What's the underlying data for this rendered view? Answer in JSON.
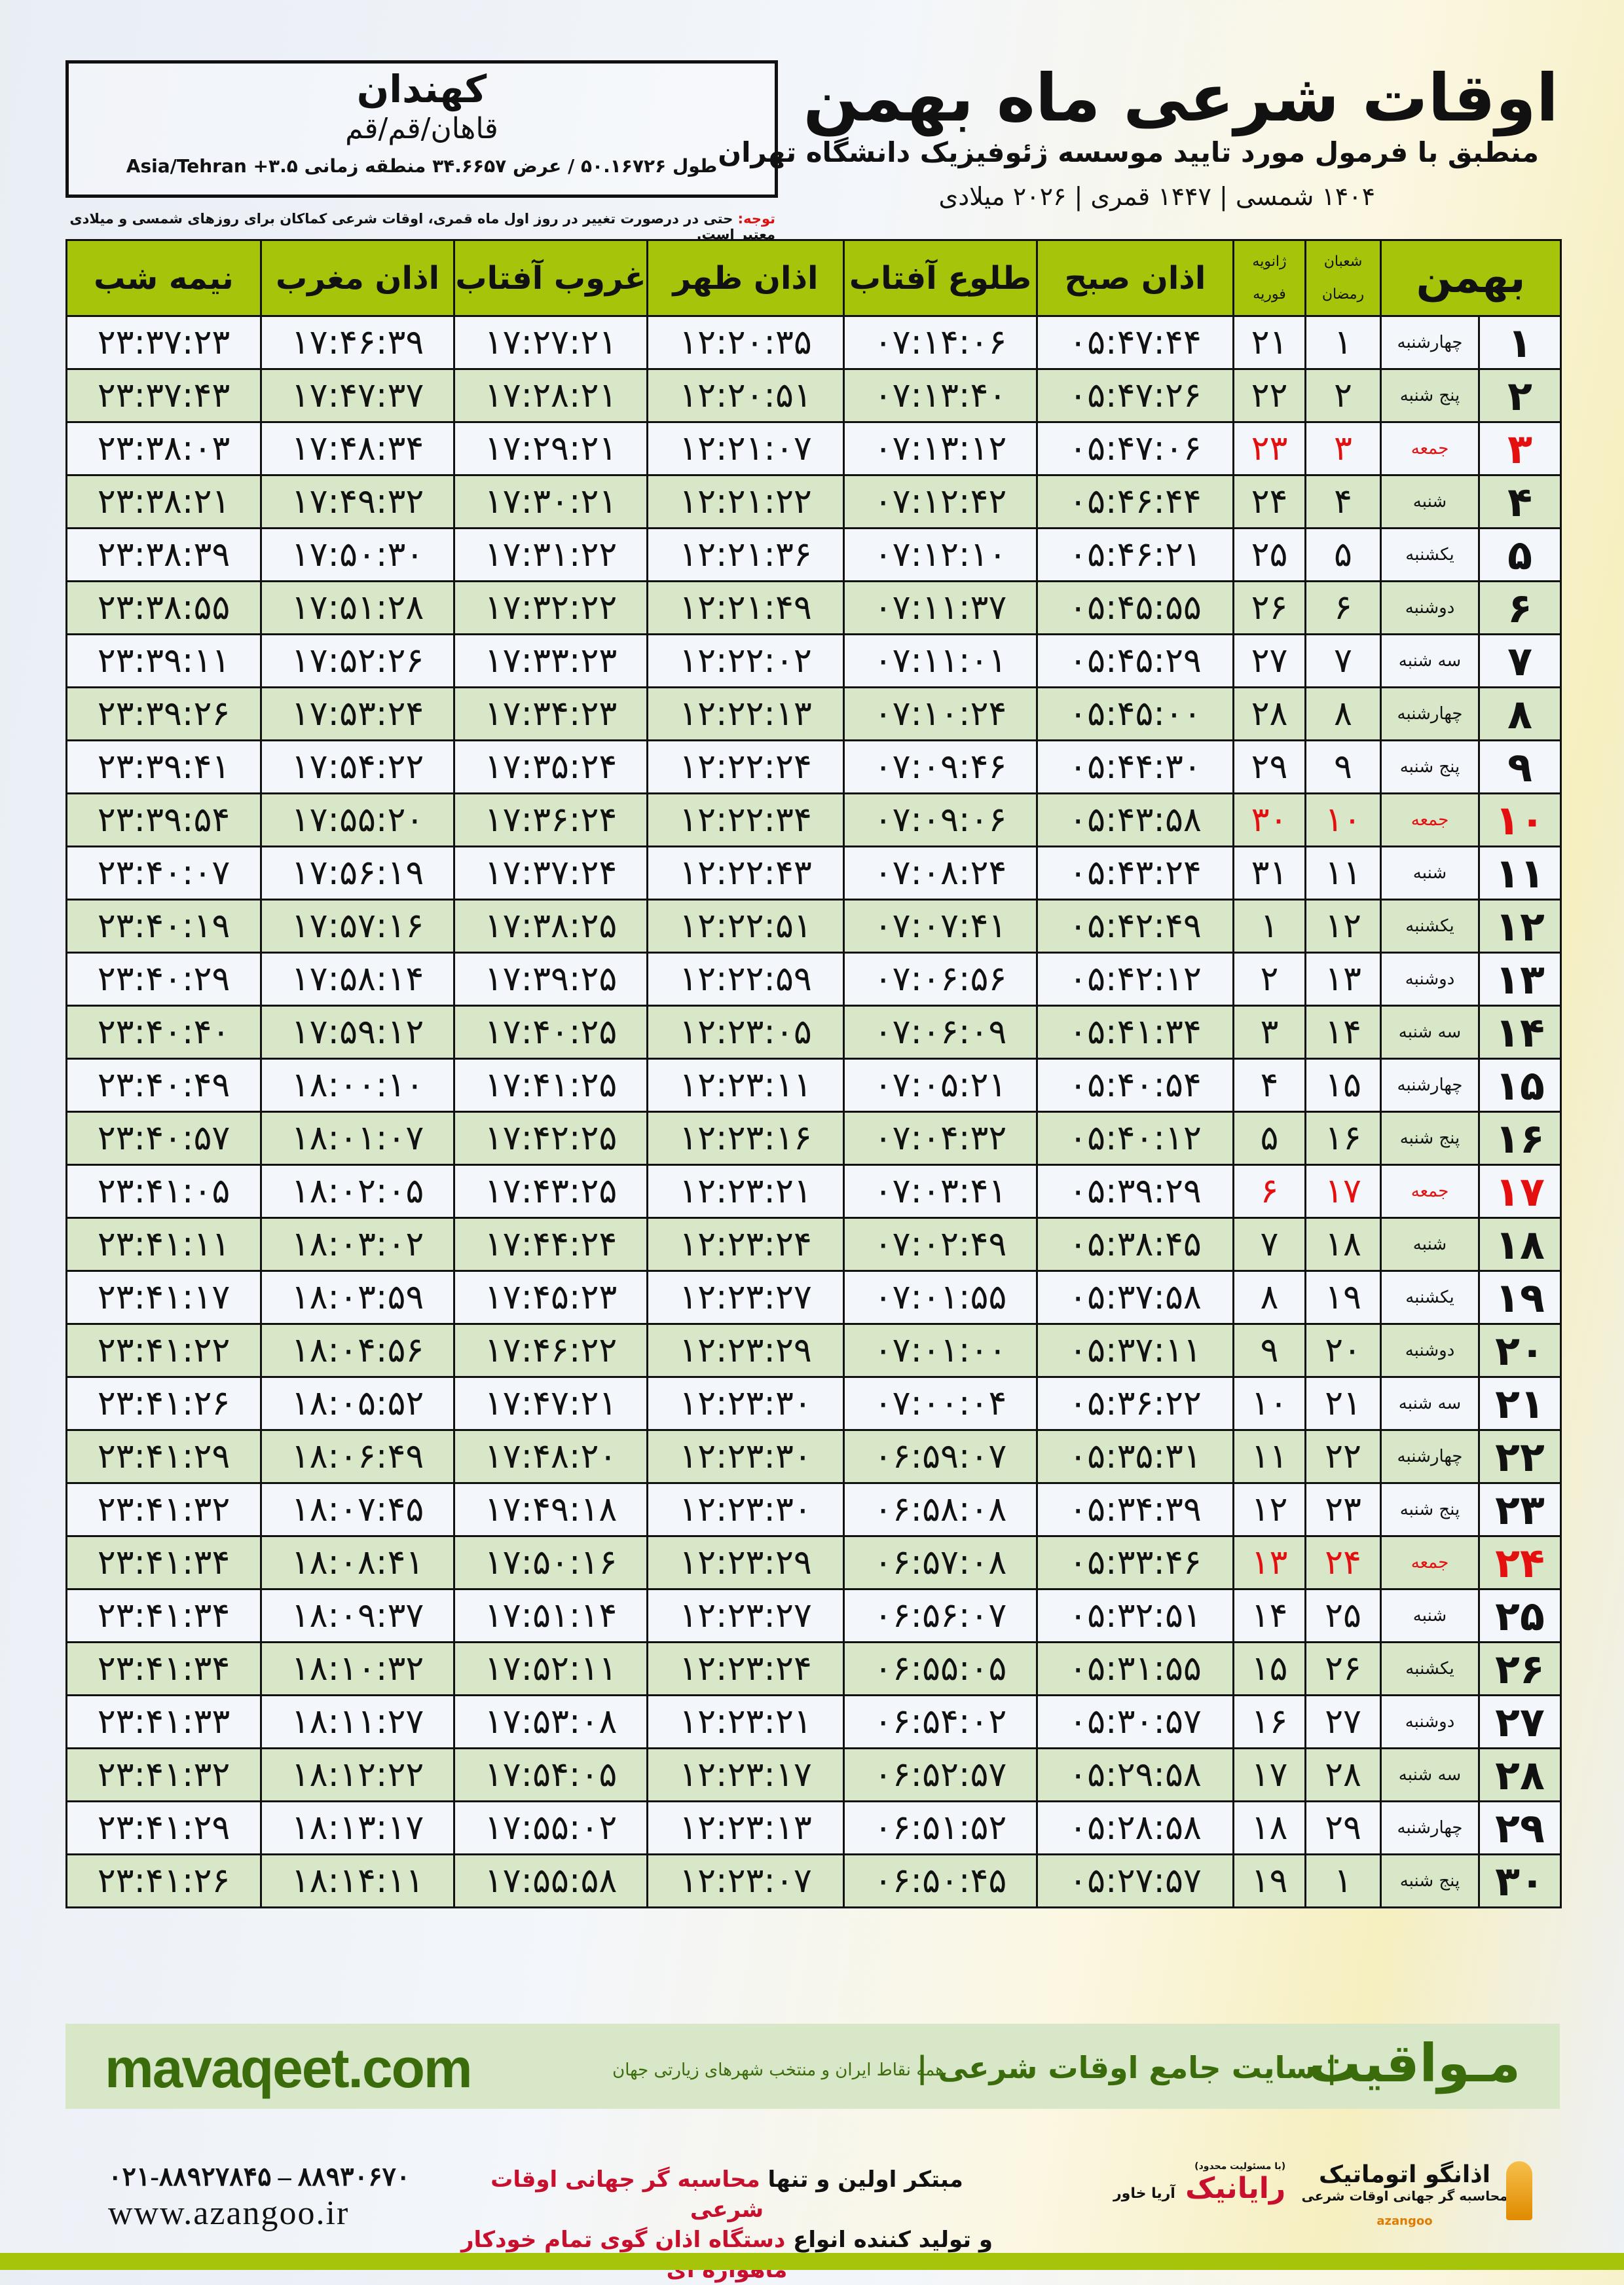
{
  "location": {
    "city": "کهندان",
    "region": "قاهان/قم/قم",
    "coords": "طول ۵۰.۱۶۷۲۶ / عرض ۳۴.۶۶۵۷ منطقه زمانی ۳.۵+ Asia/Tehran"
  },
  "note": {
    "label": "توجه:",
    "text": " حتی در درصورت تغییر در روز اول ماه قمری، اوقات شرعی کماکان برای روزهای شمسی و میلادی معتبر است."
  },
  "header": {
    "title": "اوقات شرعی ماه بهمن",
    "subtitle": "منطبق با فرمول مورد تایید موسسه ژئوفیزیک دانشگاه تهران",
    "years": "۱۴۰۴ شمسی | ۱۴۴۷ قمری | ۲۰۲۶ میلادی"
  },
  "columns": {
    "month": "بهمن",
    "hijri_top": "شعبان",
    "hijri_bottom": "رمضان",
    "greg_top": "ژانویه",
    "greg_bottom": "فوریه",
    "fajr": "اذان صبح",
    "sunrise": "طلوع آفتاب",
    "dhuhr": "اذان ظهر",
    "sunset": "غروب آفتاب",
    "maghrib": "اذان مغرب",
    "midnight": "نیمه شب"
  },
  "colors": {
    "header_green": "#a5c40a",
    "row_green": "#d9e7c9",
    "holiday_red": "#e41010",
    "brand_green": "#3b6c0c"
  },
  "rows": [
    {
      "day": "۱",
      "weekday": "چهارشنبه",
      "hijri": "۱",
      "greg": "۲۱",
      "fajr": "۰۵:۴۷:۴۴",
      "sunrise": "۰۷:۱۴:۰۶",
      "dhuhr": "۱۲:۲۰:۳۵",
      "sunset": "۱۷:۲۷:۲۱",
      "maghrib": "۱۷:۴۶:۳۹",
      "midnight": "۲۳:۳۷:۲۳",
      "holiday": false
    },
    {
      "day": "۲",
      "weekday": "پنج شنبه",
      "hijri": "۲",
      "greg": "۲۲",
      "fajr": "۰۵:۴۷:۲۶",
      "sunrise": "۰۷:۱۳:۴۰",
      "dhuhr": "۱۲:۲۰:۵۱",
      "sunset": "۱۷:۲۸:۲۱",
      "maghrib": "۱۷:۴۷:۳۷",
      "midnight": "۲۳:۳۷:۴۳",
      "holiday": false
    },
    {
      "day": "۳",
      "weekday": "جمعه",
      "hijri": "۳",
      "greg": "۲۳",
      "fajr": "۰۵:۴۷:۰۶",
      "sunrise": "۰۷:۱۳:۱۲",
      "dhuhr": "۱۲:۲۱:۰۷",
      "sunset": "۱۷:۲۹:۲۱",
      "maghrib": "۱۷:۴۸:۳۴",
      "midnight": "۲۳:۳۸:۰۳",
      "holiday": true
    },
    {
      "day": "۴",
      "weekday": "شنبه",
      "hijri": "۴",
      "greg": "۲۴",
      "fajr": "۰۵:۴۶:۴۴",
      "sunrise": "۰۷:۱۲:۴۲",
      "dhuhr": "۱۲:۲۱:۲۲",
      "sunset": "۱۷:۳۰:۲۱",
      "maghrib": "۱۷:۴۹:۳۲",
      "midnight": "۲۳:۳۸:۲۱",
      "holiday": false
    },
    {
      "day": "۵",
      "weekday": "یکشنبه",
      "hijri": "۵",
      "greg": "۲۵",
      "fajr": "۰۵:۴۶:۲۱",
      "sunrise": "۰۷:۱۲:۱۰",
      "dhuhr": "۱۲:۲۱:۳۶",
      "sunset": "۱۷:۳۱:۲۲",
      "maghrib": "۱۷:۵۰:۳۰",
      "midnight": "۲۳:۳۸:۳۹",
      "holiday": false
    },
    {
      "day": "۶",
      "weekday": "دوشنبه",
      "hijri": "۶",
      "greg": "۲۶",
      "fajr": "۰۵:۴۵:۵۵",
      "sunrise": "۰۷:۱۱:۳۷",
      "dhuhr": "۱۲:۲۱:۴۹",
      "sunset": "۱۷:۳۲:۲۲",
      "maghrib": "۱۷:۵۱:۲۸",
      "midnight": "۲۳:۳۸:۵۵",
      "holiday": false
    },
    {
      "day": "۷",
      "weekday": "سه شنبه",
      "hijri": "۷",
      "greg": "۲۷",
      "fajr": "۰۵:۴۵:۲۹",
      "sunrise": "۰۷:۱۱:۰۱",
      "dhuhr": "۱۲:۲۲:۰۲",
      "sunset": "۱۷:۳۳:۲۳",
      "maghrib": "۱۷:۵۲:۲۶",
      "midnight": "۲۳:۳۹:۱۱",
      "holiday": false
    },
    {
      "day": "۸",
      "weekday": "چهارشنبه",
      "hijri": "۸",
      "greg": "۲۸",
      "fajr": "۰۵:۴۵:۰۰",
      "sunrise": "۰۷:۱۰:۲۴",
      "dhuhr": "۱۲:۲۲:۱۳",
      "sunset": "۱۷:۳۴:۲۳",
      "maghrib": "۱۷:۵۳:۲۴",
      "midnight": "۲۳:۳۹:۲۶",
      "holiday": false
    },
    {
      "day": "۹",
      "weekday": "پنج شنبه",
      "hijri": "۹",
      "greg": "۲۹",
      "fajr": "۰۵:۴۴:۳۰",
      "sunrise": "۰۷:۰۹:۴۶",
      "dhuhr": "۱۲:۲۲:۲۴",
      "sunset": "۱۷:۳۵:۲۴",
      "maghrib": "۱۷:۵۴:۲۲",
      "midnight": "۲۳:۳۹:۴۱",
      "holiday": false
    },
    {
      "day": "۱۰",
      "weekday": "جمعه",
      "hijri": "۱۰",
      "greg": "۳۰",
      "fajr": "۰۵:۴۳:۵۸",
      "sunrise": "۰۷:۰۹:۰۶",
      "dhuhr": "۱۲:۲۲:۳۴",
      "sunset": "۱۷:۳۶:۲۴",
      "maghrib": "۱۷:۵۵:۲۰",
      "midnight": "۲۳:۳۹:۵۴",
      "holiday": true
    },
    {
      "day": "۱۱",
      "weekday": "شنبه",
      "hijri": "۱۱",
      "greg": "۳۱",
      "fajr": "۰۵:۴۳:۲۴",
      "sunrise": "۰۷:۰۸:۲۴",
      "dhuhr": "۱۲:۲۲:۴۳",
      "sunset": "۱۷:۳۷:۲۴",
      "maghrib": "۱۷:۵۶:۱۹",
      "midnight": "۲۳:۴۰:۰۷",
      "holiday": false
    },
    {
      "day": "۱۲",
      "weekday": "یکشنبه",
      "hijri": "۱۲",
      "greg": "۱",
      "fajr": "۰۵:۴۲:۴۹",
      "sunrise": "۰۷:۰۷:۴۱",
      "dhuhr": "۱۲:۲۲:۵۱",
      "sunset": "۱۷:۳۸:۲۵",
      "maghrib": "۱۷:۵۷:۱۶",
      "midnight": "۲۳:۴۰:۱۹",
      "holiday": false
    },
    {
      "day": "۱۳",
      "weekday": "دوشنبه",
      "hijri": "۱۳",
      "greg": "۲",
      "fajr": "۰۵:۴۲:۱۲",
      "sunrise": "۰۷:۰۶:۵۶",
      "dhuhr": "۱۲:۲۲:۵۹",
      "sunset": "۱۷:۳۹:۲۵",
      "maghrib": "۱۷:۵۸:۱۴",
      "midnight": "۲۳:۴۰:۲۹",
      "holiday": false
    },
    {
      "day": "۱۴",
      "weekday": "سه شنبه",
      "hijri": "۱۴",
      "greg": "۳",
      "fajr": "۰۵:۴۱:۳۴",
      "sunrise": "۰۷:۰۶:۰۹",
      "dhuhr": "۱۲:۲۳:۰۵",
      "sunset": "۱۷:۴۰:۲۵",
      "maghrib": "۱۷:۵۹:۱۲",
      "midnight": "۲۳:۴۰:۴۰",
      "holiday": false
    },
    {
      "day": "۱۵",
      "weekday": "چهارشنبه",
      "hijri": "۱۵",
      "greg": "۴",
      "fajr": "۰۵:۴۰:۵۴",
      "sunrise": "۰۷:۰۵:۲۱",
      "dhuhr": "۱۲:۲۳:۱۱",
      "sunset": "۱۷:۴۱:۲۵",
      "maghrib": "۱۸:۰۰:۱۰",
      "midnight": "۲۳:۴۰:۴۹",
      "holiday": false
    },
    {
      "day": "۱۶",
      "weekday": "پنج شنبه",
      "hijri": "۱۶",
      "greg": "۵",
      "fajr": "۰۵:۴۰:۱۲",
      "sunrise": "۰۷:۰۴:۳۲",
      "dhuhr": "۱۲:۲۳:۱۶",
      "sunset": "۱۷:۴۲:۲۵",
      "maghrib": "۱۸:۰۱:۰۷",
      "midnight": "۲۳:۴۰:۵۷",
      "holiday": false
    },
    {
      "day": "۱۷",
      "weekday": "جمعه",
      "hijri": "۱۷",
      "greg": "۶",
      "fajr": "۰۵:۳۹:۲۹",
      "sunrise": "۰۷:۰۳:۴۱",
      "dhuhr": "۱۲:۲۳:۲۱",
      "sunset": "۱۷:۴۳:۲۵",
      "maghrib": "۱۸:۰۲:۰۵",
      "midnight": "۲۳:۴۱:۰۵",
      "holiday": true
    },
    {
      "day": "۱۸",
      "weekday": "شنبه",
      "hijri": "۱۸",
      "greg": "۷",
      "fajr": "۰۵:۳۸:۴۵",
      "sunrise": "۰۷:۰۲:۴۹",
      "dhuhr": "۱۲:۲۳:۲۴",
      "sunset": "۱۷:۴۴:۲۴",
      "maghrib": "۱۸:۰۳:۰۲",
      "midnight": "۲۳:۴۱:۱۱",
      "holiday": false
    },
    {
      "day": "۱۹",
      "weekday": "یکشنبه",
      "hijri": "۱۹",
      "greg": "۸",
      "fajr": "۰۵:۳۷:۵۸",
      "sunrise": "۰۷:۰۱:۵۵",
      "dhuhr": "۱۲:۲۳:۲۷",
      "sunset": "۱۷:۴۵:۲۳",
      "maghrib": "۱۸:۰۳:۵۹",
      "midnight": "۲۳:۴۱:۱۷",
      "holiday": false
    },
    {
      "day": "۲۰",
      "weekday": "دوشنبه",
      "hijri": "۲۰",
      "greg": "۹",
      "fajr": "۰۵:۳۷:۱۱",
      "sunrise": "۰۷:۰۱:۰۰",
      "dhuhr": "۱۲:۲۳:۲۹",
      "sunset": "۱۷:۴۶:۲۲",
      "maghrib": "۱۸:۰۴:۵۶",
      "midnight": "۲۳:۴۱:۲۲",
      "holiday": false
    },
    {
      "day": "۲۱",
      "weekday": "سه شنبه",
      "hijri": "۲۱",
      "greg": "۱۰",
      "fajr": "۰۵:۳۶:۲۲",
      "sunrise": "۰۷:۰۰:۰۴",
      "dhuhr": "۱۲:۲۳:۳۰",
      "sunset": "۱۷:۴۷:۲۱",
      "maghrib": "۱۸:۰۵:۵۲",
      "midnight": "۲۳:۴۱:۲۶",
      "holiday": false
    },
    {
      "day": "۲۲",
      "weekday": "چهارشنبه",
      "hijri": "۲۲",
      "greg": "۱۱",
      "fajr": "۰۵:۳۵:۳۱",
      "sunrise": "۰۶:۵۹:۰۷",
      "dhuhr": "۱۲:۲۳:۳۰",
      "sunset": "۱۷:۴۸:۲۰",
      "maghrib": "۱۸:۰۶:۴۹",
      "midnight": "۲۳:۴۱:۲۹",
      "holiday": false
    },
    {
      "day": "۲۳",
      "weekday": "پنج شنبه",
      "hijri": "۲۳",
      "greg": "۱۲",
      "fajr": "۰۵:۳۴:۳۹",
      "sunrise": "۰۶:۵۸:۰۸",
      "dhuhr": "۱۲:۲۳:۳۰",
      "sunset": "۱۷:۴۹:۱۸",
      "maghrib": "۱۸:۰۷:۴۵",
      "midnight": "۲۳:۴۱:۳۲",
      "holiday": false
    },
    {
      "day": "۲۴",
      "weekday": "جمعه",
      "hijri": "۲۴",
      "greg": "۱۳",
      "fajr": "۰۵:۳۳:۴۶",
      "sunrise": "۰۶:۵۷:۰۸",
      "dhuhr": "۱۲:۲۳:۲۹",
      "sunset": "۱۷:۵۰:۱۶",
      "maghrib": "۱۸:۰۸:۴۱",
      "midnight": "۲۳:۴۱:۳۴",
      "holiday": true
    },
    {
      "day": "۲۵",
      "weekday": "شنبه",
      "hijri": "۲۵",
      "greg": "۱۴",
      "fajr": "۰۵:۳۲:۵۱",
      "sunrise": "۰۶:۵۶:۰۷",
      "dhuhr": "۱۲:۲۳:۲۷",
      "sunset": "۱۷:۵۱:۱۴",
      "maghrib": "۱۸:۰۹:۳۷",
      "midnight": "۲۳:۴۱:۳۴",
      "holiday": false
    },
    {
      "day": "۲۶",
      "weekday": "یکشنبه",
      "hijri": "۲۶",
      "greg": "۱۵",
      "fajr": "۰۵:۳۱:۵۵",
      "sunrise": "۰۶:۵۵:۰۵",
      "dhuhr": "۱۲:۲۳:۲۴",
      "sunset": "۱۷:۵۲:۱۱",
      "maghrib": "۱۸:۱۰:۳۲",
      "midnight": "۲۳:۴۱:۳۴",
      "holiday": false
    },
    {
      "day": "۲۷",
      "weekday": "دوشنبه",
      "hijri": "۲۷",
      "greg": "۱۶",
      "fajr": "۰۵:۳۰:۵۷",
      "sunrise": "۰۶:۵۴:۰۲",
      "dhuhr": "۱۲:۲۳:۲۱",
      "sunset": "۱۷:۵۳:۰۸",
      "maghrib": "۱۸:۱۱:۲۷",
      "midnight": "۲۳:۴۱:۳۳",
      "holiday": false
    },
    {
      "day": "۲۸",
      "weekday": "سه شنبه",
      "hijri": "۲۸",
      "greg": "۱۷",
      "fajr": "۰۵:۲۹:۵۸",
      "sunrise": "۰۶:۵۲:۵۷",
      "dhuhr": "۱۲:۲۳:۱۷",
      "sunset": "۱۷:۵۴:۰۵",
      "maghrib": "۱۸:۱۲:۲۲",
      "midnight": "۲۳:۴۱:۳۲",
      "holiday": false
    },
    {
      "day": "۲۹",
      "weekday": "چهارشنبه",
      "hijri": "۲۹",
      "greg": "۱۸",
      "fajr": "۰۵:۲۸:۵۸",
      "sunrise": "۰۶:۵۱:۵۲",
      "dhuhr": "۱۲:۲۳:۱۳",
      "sunset": "۱۷:۵۵:۰۲",
      "maghrib": "۱۸:۱۳:۱۷",
      "midnight": "۲۳:۴۱:۲۹",
      "holiday": false
    },
    {
      "day": "۳۰",
      "weekday": "پنج شنبه",
      "hijri": "۱",
      "greg": "۱۹",
      "fajr": "۰۵:۲۷:۵۷",
      "sunrise": "۰۶:۵۰:۴۵",
      "dhuhr": "۱۲:۲۳:۰۷",
      "sunset": "۱۷:۵۵:۵۸",
      "maghrib": "۱۸:۱۴:۱۱",
      "midnight": "۲۳:۴۱:۲۶",
      "holiday": false
    }
  ],
  "promo": {
    "site": "mavaqeet.com",
    "brand": "مـواقیت",
    "slogan": "| سایت جامع اوقات شرعی |",
    "tagline": "همه نقاط ایران و منتخب شهرهای زیارتی جهان"
  },
  "footer": {
    "phone": "۰۲۱-۸۸۹۲۷۸۴۵ – ۸۸۹۳۰۶۷۰",
    "web": "www.azangoo.ir",
    "ad_line1_a": "مبتکر اولین و تنها ",
    "ad_line1_b": "محاسبه گر جهانی اوقات شرعی",
    "ad_line2_a": "و تولید کننده انواع ",
    "ad_line2_b": "دستگاه اذان گوی تمام خودکار ماهواره ای",
    "logo2_note": "(با مسئولیت محدود)",
    "logo2_name": "رایانیک",
    "logo2_sub": "آریا خاور",
    "logo1_name": "اذانگو اتوماتیک",
    "logo1_sub": "محاسبه گر جهانی اوقات شرعی",
    "logo1_latin": "azangoo"
  }
}
